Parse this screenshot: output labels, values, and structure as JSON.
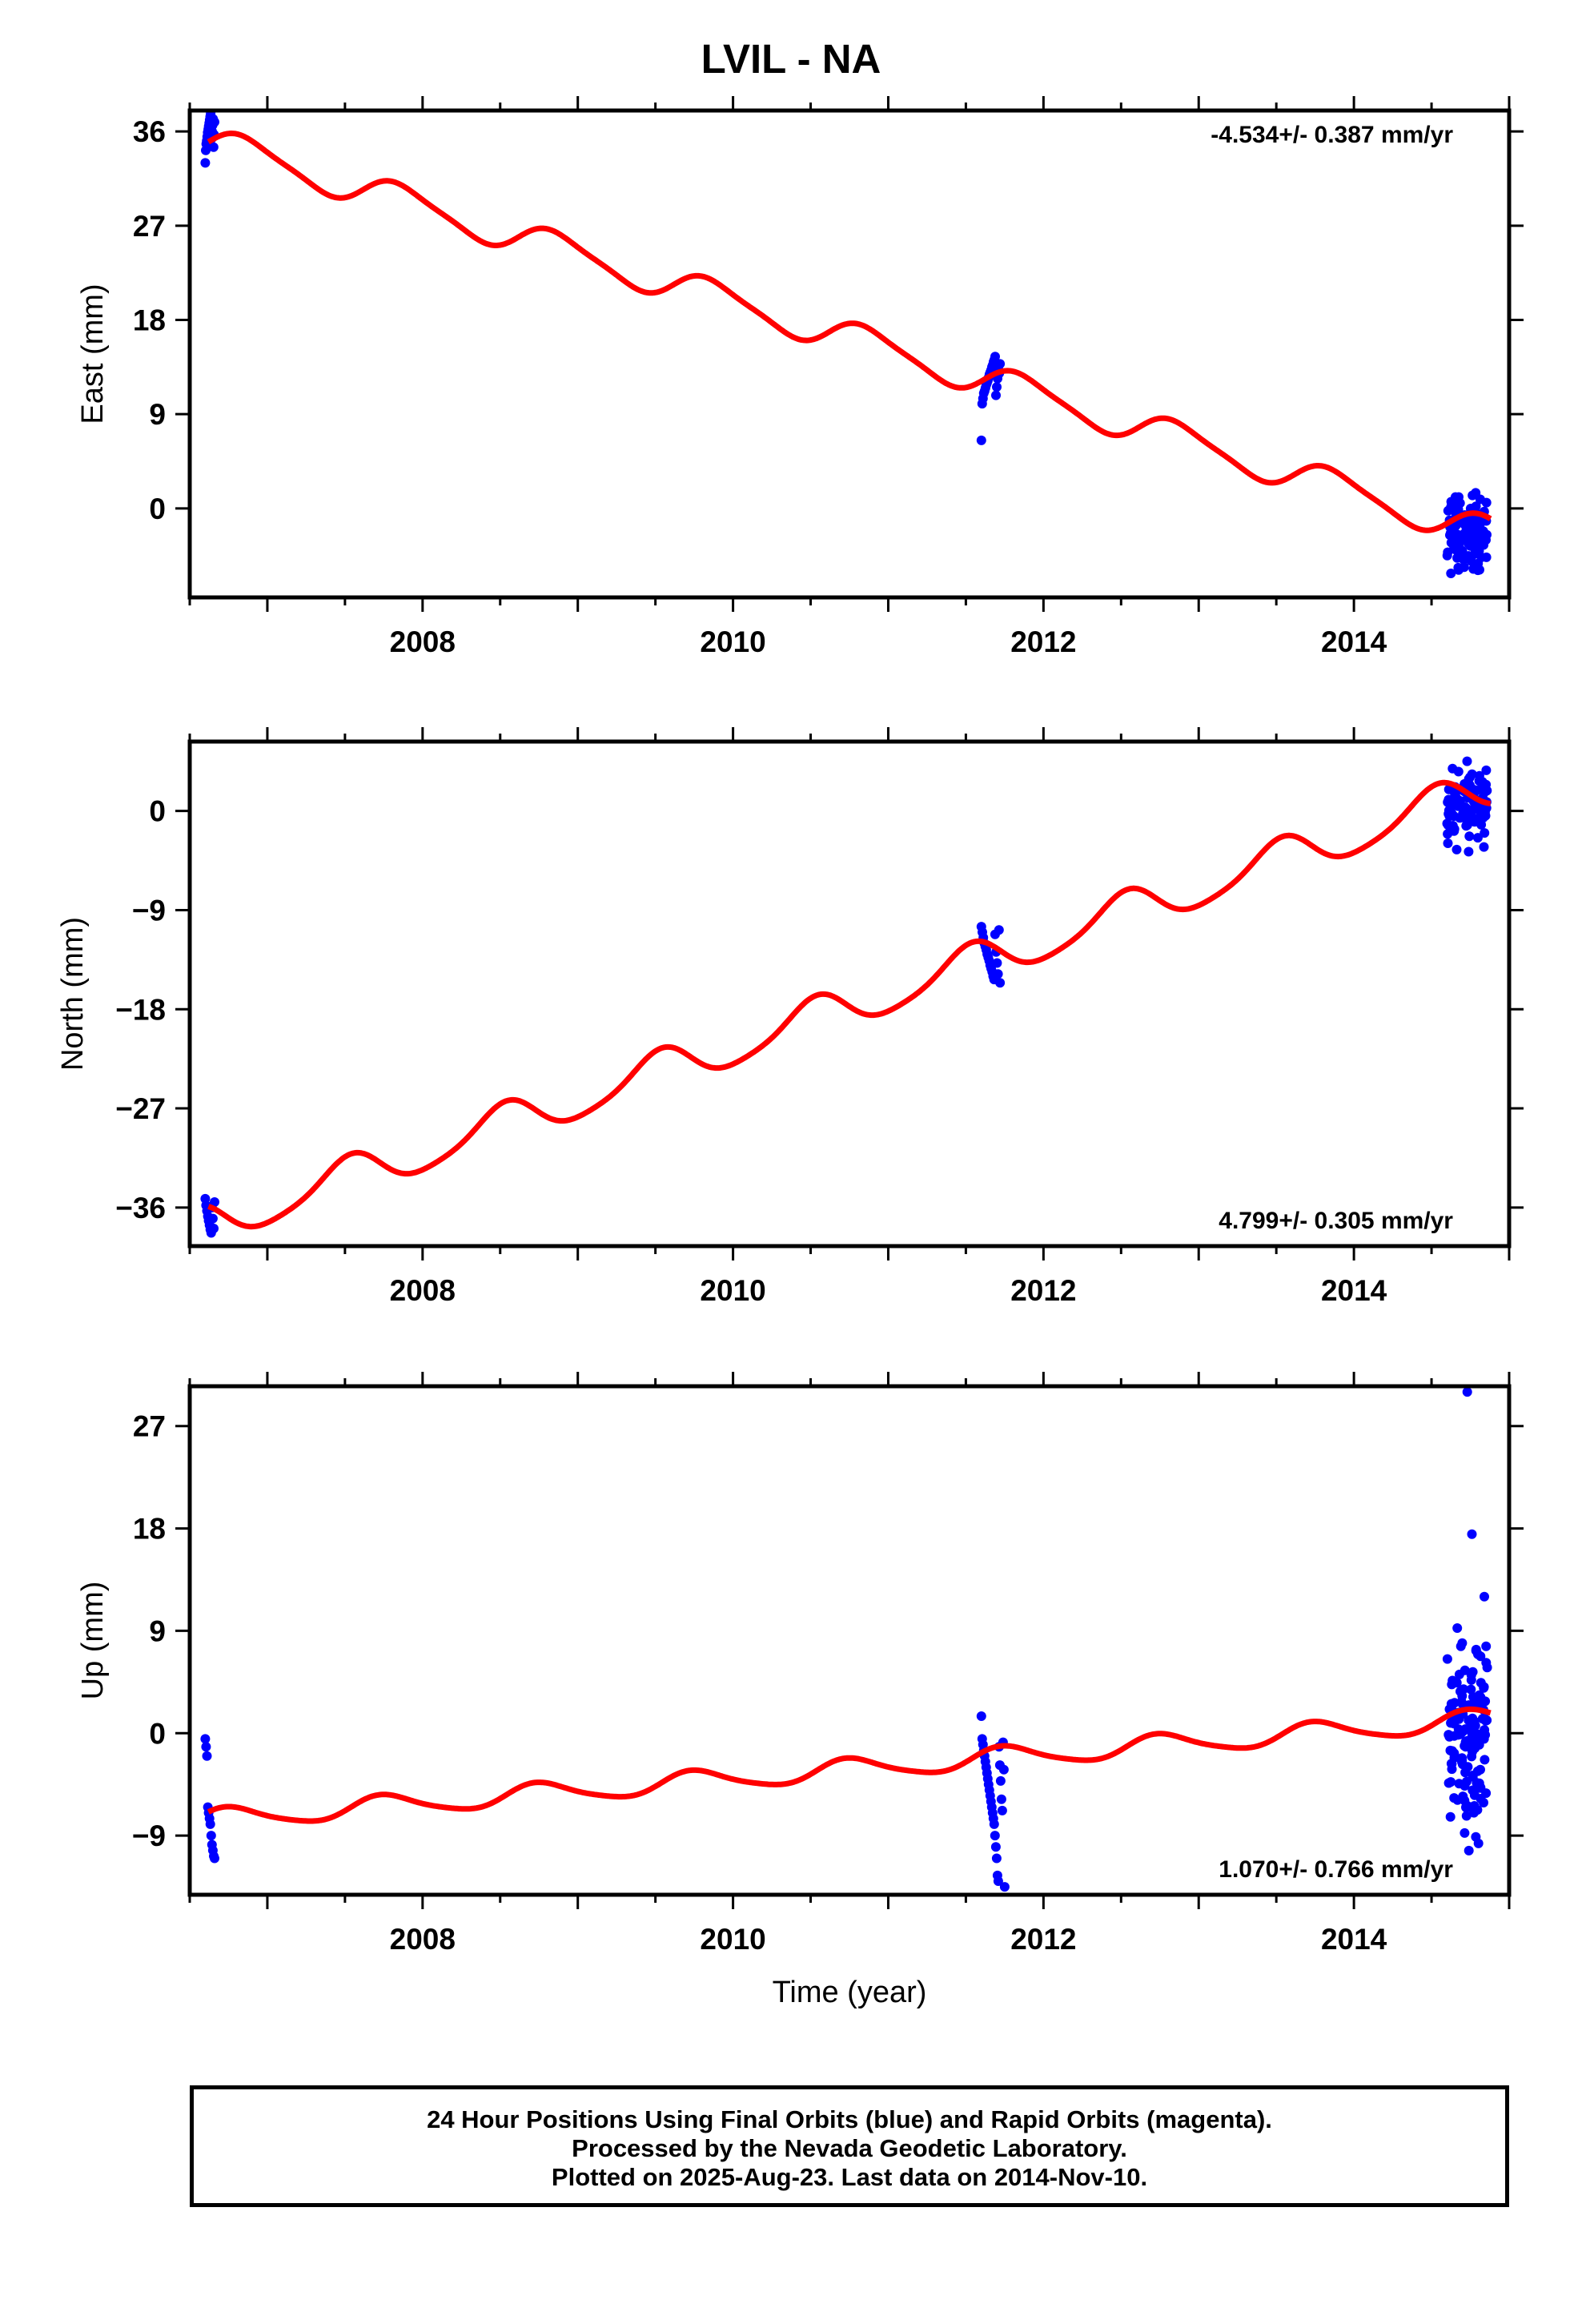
{
  "title": "LVIL - NA",
  "colors": {
    "data": "#0000ff",
    "model": "#ff0000",
    "frame": "#000000"
  },
  "chart_data": [
    {
      "type": "scatter",
      "name": "east",
      "ylabel": "East (mm)",
      "xlabel": "",
      "rate_text": "-4.534+/- 0.387 mm/yr",
      "rate_position": "top-right",
      "xlim": [
        2006.5,
        2015.0
      ],
      "ylim": [
        -8.5,
        38
      ],
      "yticks": [
        0,
        9,
        18,
        27,
        36
      ],
      "xticks": [
        2008,
        2010,
        2012,
        2014
      ],
      "grid": false,
      "model": {
        "rate": -4.534,
        "t0": 2006.62,
        "offset": 35.0,
        "amp1": 1.5,
        "amp2": 0.3,
        "phase_shift": 0
      },
      "series": [
        {
          "clusters": [
            {
              "t0": 2006.6,
              "t1": 2006.66,
              "count": 20,
              "ys": [
                33.0,
                34.2,
                34.8,
                35.1,
                35.5,
                35.9,
                36.2,
                36.5,
                36.8,
                37.1,
                37.4,
                37.7,
                38.0,
                35.3,
                36.0,
                36.6,
                37.2,
                34.5,
                35.7,
                36.9
              ]
            },
            {
              "t0": 2011.6,
              "t1": 2011.72,
              "count": 24,
              "ys": [
                6.5,
                10.0,
                10.5,
                11.0,
                11.2,
                11.5,
                11.8,
                12.0,
                12.2,
                12.5,
                12.8,
                13.0,
                13.2,
                13.5,
                13.7,
                14.0,
                14.2,
                14.5,
                10.8,
                11.6,
                12.4,
                13.3,
                12.9,
                13.8
              ]
            },
            {
              "t0": 2014.6,
              "t1": 2014.86,
              "count": 130,
              "ymin": -7.5,
              "ymax": 2.8,
              "center": -1.0
            }
          ]
        }
      ]
    },
    {
      "type": "scatter",
      "name": "north",
      "ylabel": "North (mm)",
      "xlabel": "",
      "rate_text": "4.799+/- 0.305 mm/yr",
      "rate_position": "bottom-right",
      "xlim": [
        2006.5,
        2015.0
      ],
      "ylim": [
        -39.5,
        6.3
      ],
      "yticks": [
        -36,
        -27,
        -18,
        -9,
        0
      ],
      "xticks": [
        2008,
        2010,
        2012,
        2014
      ],
      "grid": false,
      "model": {
        "rate": 4.799,
        "t0": 2006.62,
        "offset": -37.6,
        "amp1": 1.8,
        "amp2": 0.3,
        "phase_shift": 2.2
      },
      "series": [
        {
          "clusters": [
            {
              "t0": 2006.6,
              "t1": 2006.66,
              "count": 12,
              "ys": [
                -35.2,
                -35.8,
                -36.3,
                -36.8,
                -37.2,
                -37.6,
                -38.0,
                -38.3,
                -36.0,
                -37.0,
                -37.9,
                -35.5
              ]
            },
            {
              "t0": 2011.6,
              "t1": 2011.72,
              "count": 20,
              "ys": [
                -10.5,
                -11.0,
                -11.5,
                -12.0,
                -12.3,
                -12.6,
                -13.0,
                -13.3,
                -13.6,
                -14.0,
                -14.3,
                -14.6,
                -15.0,
                -15.3,
                -11.2,
                -12.8,
                -13.8,
                -14.8,
                -10.8,
                -15.6
              ]
            },
            {
              "t0": 2014.6,
              "t1": 2014.86,
              "count": 110,
              "ymin": -4.5,
              "ymax": 5.5,
              "center": 0.5
            }
          ]
        }
      ]
    },
    {
      "type": "scatter",
      "name": "up",
      "ylabel": "Up (mm)",
      "xlabel": "Time (year)",
      "rate_text": "1.070+/- 0.766 mm/yr",
      "rate_position": "bottom-right",
      "xlim": [
        2006.5,
        2015.0
      ],
      "ylim": [
        -14.2,
        30.5
      ],
      "yticks": [
        -9,
        0,
        9,
        18,
        27
      ],
      "xticks": [
        2008,
        2010,
        2012,
        2014
      ],
      "grid": false,
      "model": {
        "rate": 1.07,
        "t0": 2006.62,
        "offset": -7.6,
        "amp1": 0.9,
        "amp2": 0.15,
        "phase_shift": 0.7
      },
      "series": [
        {
          "clusters": [
            {
              "t0": 2006.6,
              "t1": 2006.66,
              "count": 12,
              "ys": [
                -0.5,
                -1.2,
                -2.0,
                -6.5,
                -7.0,
                -7.5,
                -8.0,
                -9.0,
                -9.8,
                -10.3,
                -10.8,
                -11.0
              ]
            },
            {
              "t0": 2011.6,
              "t1": 2011.75,
              "count": 30,
              "ys": [
                1.5,
                -0.5,
                -1.0,
                -1.5,
                -2.0,
                -2.5,
                -3.0,
                -3.5,
                -4.0,
                -4.5,
                -5.0,
                -5.5,
                -6.0,
                -6.5,
                -7.0,
                -7.5,
                -8.0,
                -9.0,
                -10.0,
                -11.0,
                -12.5,
                -13.0,
                -1.2,
                -2.8,
                -4.2,
                -5.8,
                -6.8,
                -0.8,
                -3.2,
                -13.5
              ]
            },
            {
              "t0": 2014.6,
              "t1": 2014.86,
              "count": 140,
              "ymin": -12,
              "ymax": 12,
              "center": 1.5,
              "outliers": [
                [
                  2014.73,
                  30.0
                ],
                [
                  2014.76,
                  17.5
                ],
                [
                  2014.84,
                  12.0
                ]
              ]
            }
          ]
        }
      ]
    }
  ],
  "footer": {
    "line1": "24 Hour Positions Using Final Orbits (blue) and Rapid Orbits (magenta).",
    "line2": "Processed by the Nevada Geodetic Laboratory.",
    "line3": "Plotted on 2025-Aug-23. Last data on 2014-Nov-10."
  }
}
